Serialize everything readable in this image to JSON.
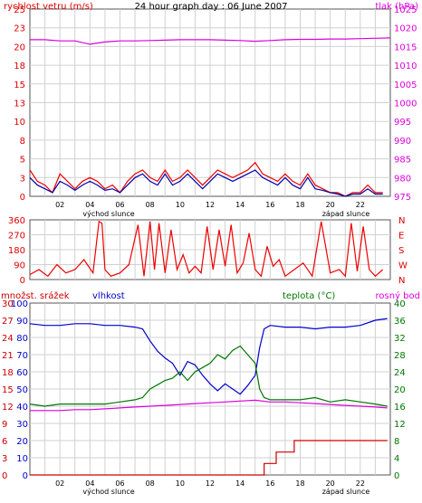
{
  "chart_data": [
    {
      "type": "line",
      "title": "24 hour graph day : 06 June 2007",
      "left_axis_label": "rychlost vetru (m/s)",
      "right_axis_label": "tlak (hPa)",
      "left_ylim": [
        0,
        25
      ],
      "left_ticks": [
        "0",
        "3",
        "5",
        "8",
        "10",
        "13",
        "15",
        "18",
        "20",
        "23",
        "25"
      ],
      "right_ylim": [
        975,
        1025
      ],
      "right_ticks": [
        "975",
        "980",
        "985",
        "990",
        "995",
        "1000",
        "1005",
        "1010",
        "1015",
        "1020",
        "1025"
      ],
      "x_ticks": [
        "02",
        "04",
        "06",
        "08",
        "10",
        "12",
        "14",
        "16",
        "18",
        "20",
        "22"
      ],
      "x_sub_labels": [
        "východ slunce",
        "západ slunce"
      ],
      "grid": true,
      "series": [
        {
          "name": "rychlost vetru (m/s)",
          "axis": "left",
          "color": "#ee0000",
          "x": [
            0,
            0.5,
            1,
            1.5,
            2,
            2.5,
            3,
            3.5,
            4,
            4.5,
            5,
            5.5,
            6,
            6.5,
            7,
            7.5,
            8,
            8.5,
            9,
            9.5,
            10,
            10.5,
            11,
            11.5,
            12,
            12.5,
            13,
            13.5,
            14,
            14.5,
            15,
            15.5,
            16,
            16.5,
            17,
            17.5,
            18,
            18.5,
            19,
            19.5,
            20,
            20.5,
            21,
            21.5,
            22,
            22.5,
            23,
            23.5
          ],
          "y": [
            3.5,
            2,
            1.5,
            0.5,
            3,
            2,
            1,
            2,
            2.5,
            2,
            1,
            1.5,
            0.5,
            2,
            3,
            3.5,
            2.5,
            2,
            3.5,
            2,
            2.5,
            3.5,
            2.5,
            1.5,
            2.5,
            3.5,
            3,
            2.5,
            3,
            3.5,
            4.5,
            3,
            2.5,
            2,
            3,
            2,
            1.5,
            3,
            1.5,
            1,
            0.5,
            0.5,
            0,
            0.5,
            0.5,
            1.5,
            0.5,
            0.5
          ]
        },
        {
          "name": "prumerna rychlost",
          "axis": "left",
          "color": "#0000aa",
          "x": [
            0,
            0.5,
            1,
            1.5,
            2,
            2.5,
            3,
            3.5,
            4,
            4.5,
            5,
            5.5,
            6,
            6.5,
            7,
            7.5,
            8,
            8.5,
            9,
            9.5,
            10,
            10.5,
            11,
            11.5,
            12,
            12.5,
            13,
            13.5,
            14,
            14.5,
            15,
            15.5,
            16,
            16.5,
            17,
            17.5,
            18,
            18.5,
            19,
            19.5,
            20,
            20.5,
            21,
            21.5,
            22,
            22.5,
            23,
            23.5
          ],
          "y": [
            2.5,
            1.5,
            1,
            0.5,
            2,
            1.5,
            0.8,
            1.5,
            2,
            1.5,
            0.8,
            1,
            0.5,
            1.5,
            2.5,
            3,
            2,
            1.5,
            3,
            1.5,
            2,
            3,
            2,
            1,
            2,
            3,
            2.5,
            2,
            2.5,
            3,
            3.5,
            2.5,
            2,
            1.5,
            2.5,
            1.5,
            1,
            2.5,
            1,
            0.8,
            0.5,
            0.3,
            0,
            0.3,
            0.3,
            1,
            0.3,
            0.3
          ]
        },
        {
          "name": "tlak (hPa)",
          "axis": "right",
          "color": "#dd00dd",
          "x": [
            0,
            1,
            2,
            3,
            4,
            5,
            6,
            7,
            8,
            9,
            10,
            11,
            12,
            13,
            14,
            15,
            16,
            17,
            18,
            19,
            20,
            21,
            22,
            23,
            24
          ],
          "y": [
            1016.8,
            1016.8,
            1016.5,
            1016.5,
            1015.6,
            1016.2,
            1016.5,
            1016.5,
            1016.6,
            1016.7,
            1016.8,
            1016.8,
            1016.8,
            1016.7,
            1016.6,
            1016.4,
            1016.6,
            1016.8,
            1016.9,
            1016.9,
            1017.0,
            1017.0,
            1017.1,
            1017.2,
            1017.3
          ]
        }
      ]
    },
    {
      "type": "line",
      "left_ticks": [
        "0",
        "90",
        "180",
        "270",
        "360"
      ],
      "left_ylim": [
        0,
        360
      ],
      "right_ticks": [
        "N",
        "W",
        "S",
        "E",
        "N"
      ],
      "grid": true,
      "series": [
        {
          "name": "smer vetru",
          "axis": "left",
          "color": "#ee0000",
          "x": [
            0,
            0.6,
            1.2,
            1.8,
            2.4,
            3,
            3.6,
            4.2,
            4.6,
            4.8,
            5,
            5.4,
            6,
            6.6,
            7.2,
            7.6,
            8,
            8.3,
            8.6,
            9,
            9.4,
            9.8,
            10.2,
            10.6,
            11,
            11.4,
            11.8,
            12.2,
            12.6,
            13,
            13.4,
            13.8,
            14.2,
            14.6,
            15,
            15.4,
            15.8,
            16.2,
            16.6,
            17,
            17.6,
            18.2,
            18.8,
            19.4,
            20,
            20.6,
            21,
            21.4,
            21.8,
            22.2,
            22.6,
            23,
            23.5
          ],
          "y": [
            30,
            60,
            20,
            90,
            40,
            60,
            120,
            40,
            350,
            340,
            60,
            20,
            40,
            90,
            330,
            20,
            350,
            60,
            340,
            40,
            300,
            60,
            150,
            40,
            80,
            40,
            320,
            60,
            300,
            80,
            330,
            40,
            100,
            280,
            60,
            20,
            200,
            80,
            120,
            20,
            60,
            100,
            20,
            350,
            40,
            60,
            20,
            340,
            50,
            320,
            60,
            20,
            60
          ]
        }
      ]
    },
    {
      "type": "line",
      "left_axis_label": "množst. srážek",
      "left_axis_label2": "vlhkost",
      "right_axis_label": "teplota (°C)",
      "right_axis_label2": "rosný bod",
      "left_ylim": [
        0,
        100
      ],
      "left_ticks": [
        "0",
        "10",
        "20",
        "30",
        "40",
        "50",
        "60",
        "70",
        "80",
        "90",
        "100"
      ],
      "left_ticks2": [
        "0",
        "3",
        "6",
        "9",
        "12",
        "15",
        "18",
        "21",
        "24",
        "27",
        "30"
      ],
      "right_ylim": [
        0,
        40
      ],
      "right_ticks": [
        "0",
        "4",
        "8",
        "12",
        "16",
        "20",
        "24",
        "28",
        "32",
        "36",
        "40"
      ],
      "x_ticks": [
        "02",
        "04",
        "06",
        "08",
        "10",
        "12",
        "14",
        "16",
        "18",
        "20",
        "22"
      ],
      "x_sub_labels": [
        "východ slunce",
        "západ slunce"
      ],
      "grid": true,
      "series": [
        {
          "name": "vlhkost",
          "axis": "left",
          "color": "#0000cc",
          "x": [
            0,
            1,
            2,
            3,
            4,
            5,
            6,
            7,
            7.5,
            8,
            8.5,
            9,
            9.5,
            10,
            10.5,
            11,
            11.5,
            12,
            12.5,
            13,
            13.5,
            14,
            14.5,
            15,
            15.3,
            15.6,
            16,
            17,
            18,
            19,
            20,
            21,
            22,
            23,
            23.8
          ],
          "y": [
            88,
            87,
            87,
            88,
            88,
            87,
            87,
            86,
            85,
            78,
            72,
            68,
            65,
            58,
            66,
            64,
            58,
            53,
            49,
            53,
            50,
            47,
            52,
            58,
            74,
            85,
            87,
            86,
            86,
            85,
            86,
            86,
            87,
            90,
            91
          ]
        },
        {
          "name": "teplota (°C)",
          "axis": "right",
          "color": "#007700",
          "x": [
            0,
            1,
            2,
            3,
            4,
            5,
            6,
            7,
            7.5,
            8,
            8.5,
            9,
            9.5,
            10,
            10.5,
            11,
            11.5,
            12,
            12.5,
            13,
            13.5,
            14,
            14.5,
            15,
            15.3,
            15.6,
            16,
            17,
            18,
            19,
            20,
            21,
            22,
            23,
            23.8
          ],
          "y": [
            16.5,
            16,
            16.5,
            16.5,
            16.5,
            16.5,
            17,
            17.5,
            18,
            20,
            21,
            22,
            22.5,
            24,
            22,
            24,
            25,
            26,
            28,
            27,
            29,
            30,
            28,
            26,
            20,
            18,
            17.5,
            17.5,
            17.5,
            18,
            17,
            17.5,
            17,
            16.5,
            16
          ]
        },
        {
          "name": "rosný bod",
          "axis": "right",
          "color": "#dd00dd",
          "x": [
            0,
            1,
            2,
            3,
            4,
            5,
            6,
            7,
            8,
            9,
            10,
            11,
            12,
            13,
            14,
            15,
            16,
            17,
            18,
            19,
            20,
            21,
            22,
            23,
            23.8
          ],
          "y": [
            15,
            15,
            15,
            15.2,
            15.2,
            15.4,
            15.6,
            15.8,
            16,
            16.2,
            16.4,
            16.6,
            16.8,
            17,
            17.2,
            17.4,
            17,
            17,
            16.8,
            16.6,
            16.4,
            16.2,
            16,
            15.8,
            15.6
          ]
        },
        {
          "name": "množst. srážek",
          "axis": "left2",
          "color": "#cc0000",
          "step": true,
          "x": [
            0,
            14.9,
            15.5,
            15.6,
            16,
            16.4,
            17.5,
            17.6,
            23.8
          ],
          "y": [
            0,
            0,
            0,
            2,
            2,
            4,
            4,
            6,
            6
          ]
        }
      ]
    }
  ]
}
